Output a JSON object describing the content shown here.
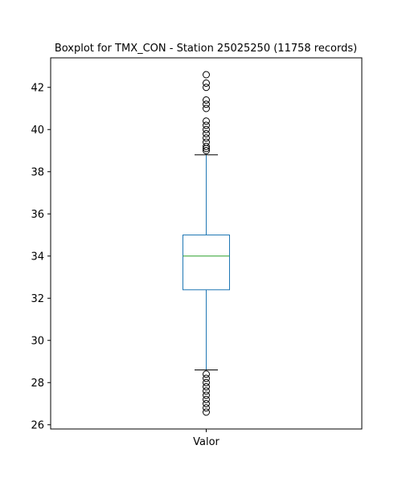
{
  "chart_data": {
    "type": "box",
    "title": "Boxplot for TMX_CON - Station 25025250 (11758 records)",
    "xlabel": "",
    "ylabel": "",
    "categories": [
      "Valor"
    ],
    "ylim": [
      25.8,
      43.4
    ],
    "yticks": [
      26,
      28,
      30,
      32,
      34,
      36,
      38,
      40,
      42
    ],
    "grid": false,
    "box": {
      "whisker_low": 28.6,
      "q1": 32.4,
      "median": 34.0,
      "q3": 35.0,
      "whisker_high": 38.8,
      "outliers_high": [
        39.0,
        39.1,
        39.2,
        39.4,
        39.6,
        39.8,
        40.0,
        40.2,
        40.4,
        41.0,
        41.2,
        41.4,
        42.0,
        42.2,
        42.6
      ],
      "outliers_low": [
        28.4,
        28.2,
        28.0,
        27.8,
        27.6,
        27.4,
        27.2,
        27.0,
        26.8,
        26.6
      ]
    },
    "colors": {
      "box": "#1f77b4",
      "median": "#2ca02c",
      "caps": "#000000",
      "outlier_edge": "#000000"
    }
  }
}
